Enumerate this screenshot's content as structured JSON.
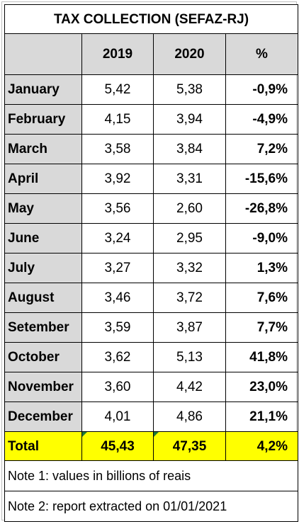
{
  "title": "TAX COLLECTION (SEFAZ-RJ)",
  "headers": {
    "col_2019": "2019",
    "col_2020": "2020",
    "col_pct": "%"
  },
  "rows": [
    {
      "month": "January",
      "v2019": "5,42",
      "v2020": "5,38",
      "pct": "-0,9%"
    },
    {
      "month": "February",
      "v2019": "4,15",
      "v2020": "3,94",
      "pct": "-4,9%"
    },
    {
      "month": "March",
      "v2019": "3,58",
      "v2020": "3,84",
      "pct": "7,2%"
    },
    {
      "month": "April",
      "v2019": "3,92",
      "v2020": "3,31",
      "pct": "-15,6%"
    },
    {
      "month": "May",
      "v2019": "3,56",
      "v2020": "2,60",
      "pct": "-26,8%"
    },
    {
      "month": "June",
      "v2019": "3,24",
      "v2020": "2,95",
      "pct": "-9,0%"
    },
    {
      "month": "July",
      "v2019": "3,27",
      "v2020": "3,32",
      "pct": "1,3%"
    },
    {
      "month": "August",
      "v2019": "3,46",
      "v2020": "3,72",
      "pct": "7,6%"
    },
    {
      "month": "Setember",
      "v2019": "3,59",
      "v2020": "3,87",
      "pct": "7,7%"
    },
    {
      "month": "October",
      "v2019": "3,62",
      "v2020": "5,13",
      "pct": "41,8%"
    },
    {
      "month": "November",
      "v2019": "3,60",
      "v2020": "4,42",
      "pct": "23,0%"
    },
    {
      "month": "December",
      "v2019": "4,01",
      "v2020": "4,86",
      "pct": "21,1%"
    }
  ],
  "total": {
    "label": "Total",
    "v2019": "45,43",
    "v2020": "47,35",
    "pct": "4,2%"
  },
  "notes": [
    "Note 1: values in billions of reais",
    "Note 2: report extracted on 01/01/2021"
  ],
  "colors": {
    "header_bg": "#d9d9d9",
    "total_bg": "#ffff00",
    "comment_marker": "#1f7a3a"
  }
}
